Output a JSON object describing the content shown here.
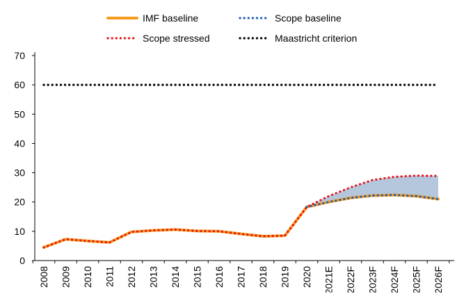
{
  "chart_data": {
    "type": "line",
    "title": "",
    "xlabel": "",
    "ylabel": "",
    "categories": [
      "2008",
      "2009",
      "2010",
      "2011",
      "2012",
      "2013",
      "2014",
      "2015",
      "2016",
      "2017",
      "2018",
      "2019",
      "2020",
      "2021E",
      "2022F",
      "2023F",
      "2024F",
      "2025F",
      "2026F"
    ],
    "ylim": [
      0,
      70
    ],
    "yticks": [
      0,
      10,
      20,
      30,
      40,
      50,
      60,
      70
    ],
    "grid": false,
    "legend_position": "top",
    "series": [
      {
        "name": "IMF baseline",
        "style": "solid",
        "color": "#f39c1d",
        "values": [
          4.5,
          7.3,
          6.7,
          6.2,
          9.8,
          10.3,
          10.6,
          10.1,
          10.0,
          9.1,
          8.3,
          8.5,
          18.3,
          20.0,
          21.4,
          22.2,
          22.4,
          22.0,
          21.0
        ]
      },
      {
        "name": "Scope baseline",
        "style": "dotted",
        "color": "#1f5fb8",
        "values": [
          null,
          null,
          null,
          null,
          null,
          null,
          null,
          null,
          null,
          null,
          null,
          null,
          18.3,
          20.0,
          21.4,
          22.2,
          22.4,
          22.0,
          21.0
        ]
      },
      {
        "name": "Scope stressed",
        "style": "dotted",
        "color": "#e8131b",
        "values": [
          4.5,
          7.3,
          6.7,
          6.2,
          9.8,
          10.3,
          10.6,
          10.1,
          10.0,
          9.1,
          8.3,
          8.5,
          18.3,
          22.0,
          25.0,
          27.5,
          28.6,
          29.0,
          28.9
        ]
      },
      {
        "name": "Maastricht criterion",
        "style": "dotted",
        "color": "#000000",
        "values": [
          60,
          60,
          60,
          60,
          60,
          60,
          60,
          60,
          60,
          60,
          60,
          60,
          60,
          60,
          60,
          60,
          60,
          60,
          60
        ]
      }
    ],
    "shaded_band": {
      "between": [
        "Scope baseline",
        "Scope stressed"
      ],
      "from_category": "2020",
      "color": "#b4c7dc"
    }
  }
}
